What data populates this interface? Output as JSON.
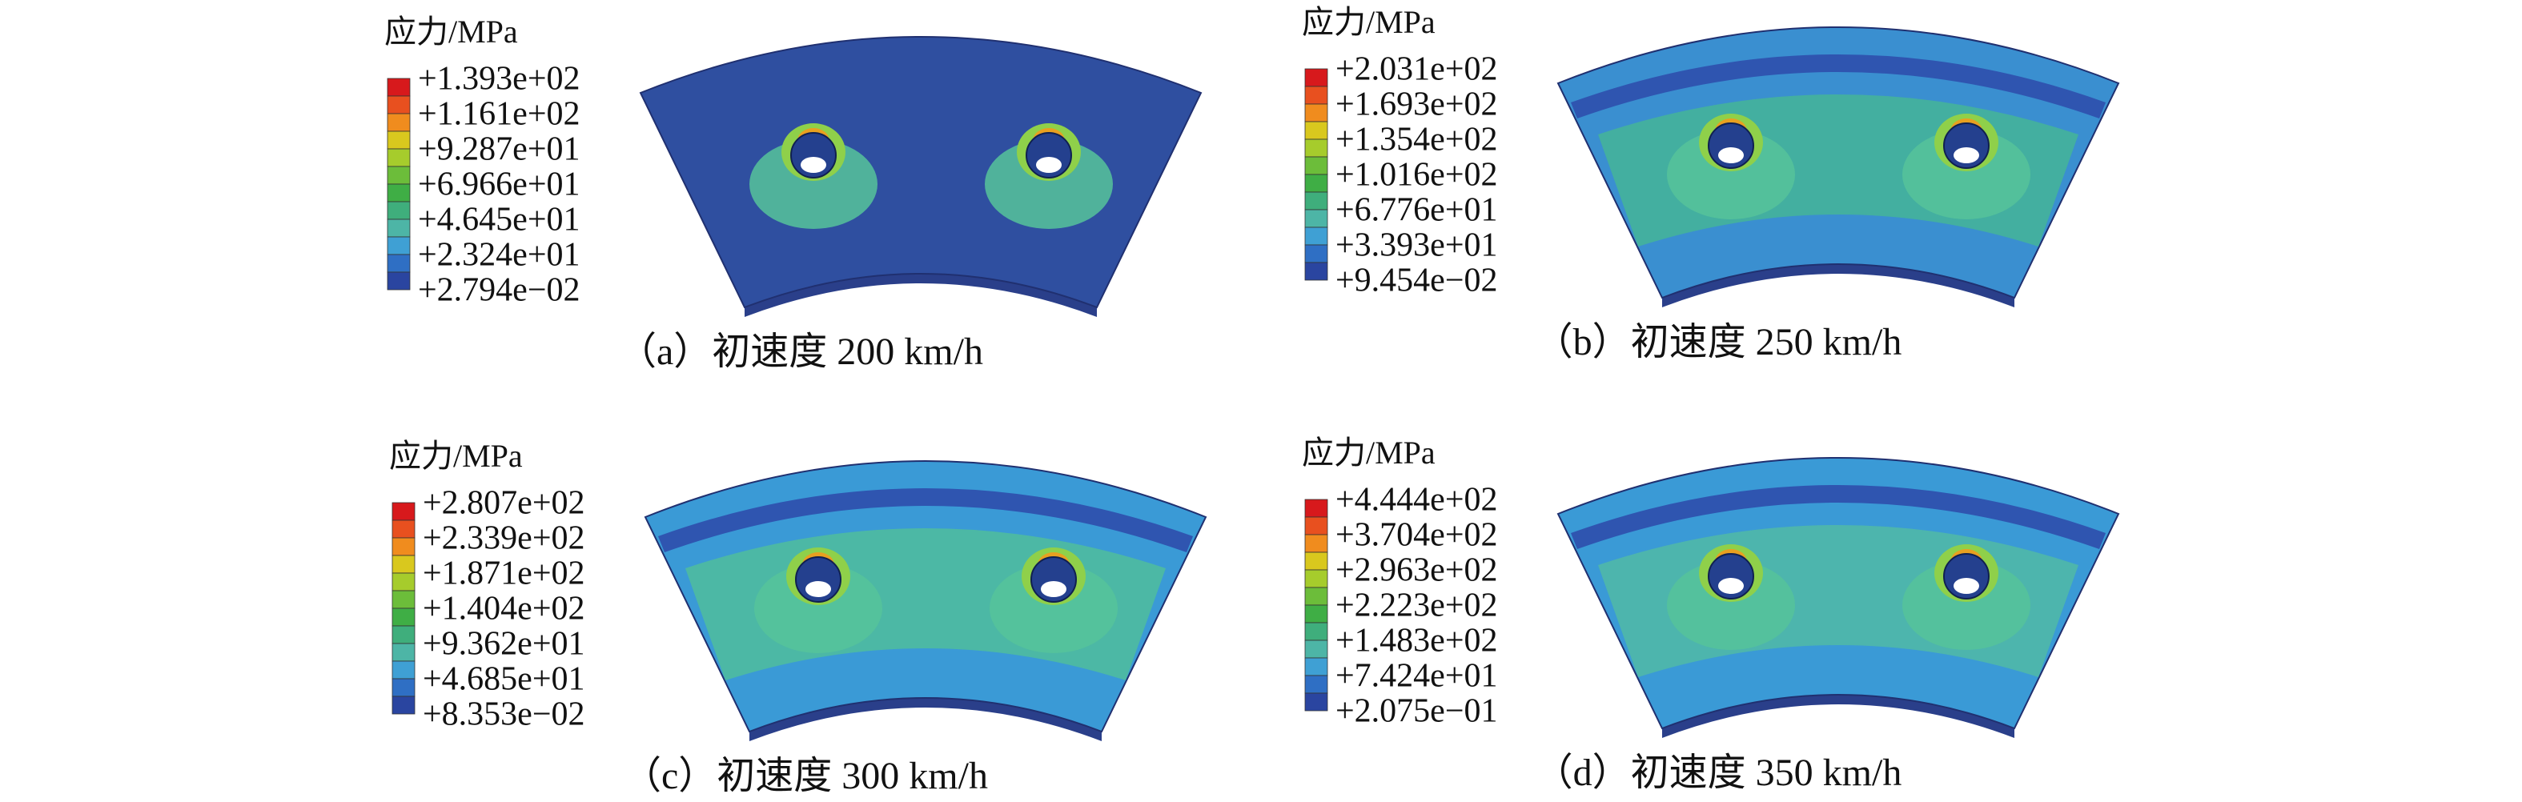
{
  "panels": [
    {
      "legend_title": "应力/MPa",
      "legend_labels": [
        "+1.393e+02",
        "+1.161e+02",
        "+9.287e+01",
        "+6.966e+01",
        "+4.645e+01",
        "+2.324e+01",
        "+2.794e−02"
      ],
      "caption": "（a）初速度 200 km/h"
    },
    {
      "legend_title": "应力/MPa",
      "legend_labels": [
        "+2.031e+02",
        "+1.693e+02",
        "+1.354e+02",
        "+1.016e+02",
        "+6.776e+01",
        "+3.393e+01",
        "+9.454e−02"
      ],
      "caption": "（b）初速度 250 km/h"
    },
    {
      "legend_title": "应力/MPa",
      "legend_labels": [
        "+2.807e+02",
        "+2.339e+02",
        "+1.871e+02",
        "+1.404e+02",
        "+9.362e+01",
        "+4.685e+01",
        "+8.353e−02"
      ],
      "caption": "（c）初速度 300 km/h"
    },
    {
      "legend_title": "应力/MPa",
      "legend_labels": [
        "+4.444e+02",
        "+3.704e+02",
        "+2.963e+02",
        "+2.223e+02",
        "+1.483e+02",
        "+7.424e+01",
        "+2.075e−01"
      ],
      "caption": "（d）初速度 350 km/h"
    }
  ]
}
